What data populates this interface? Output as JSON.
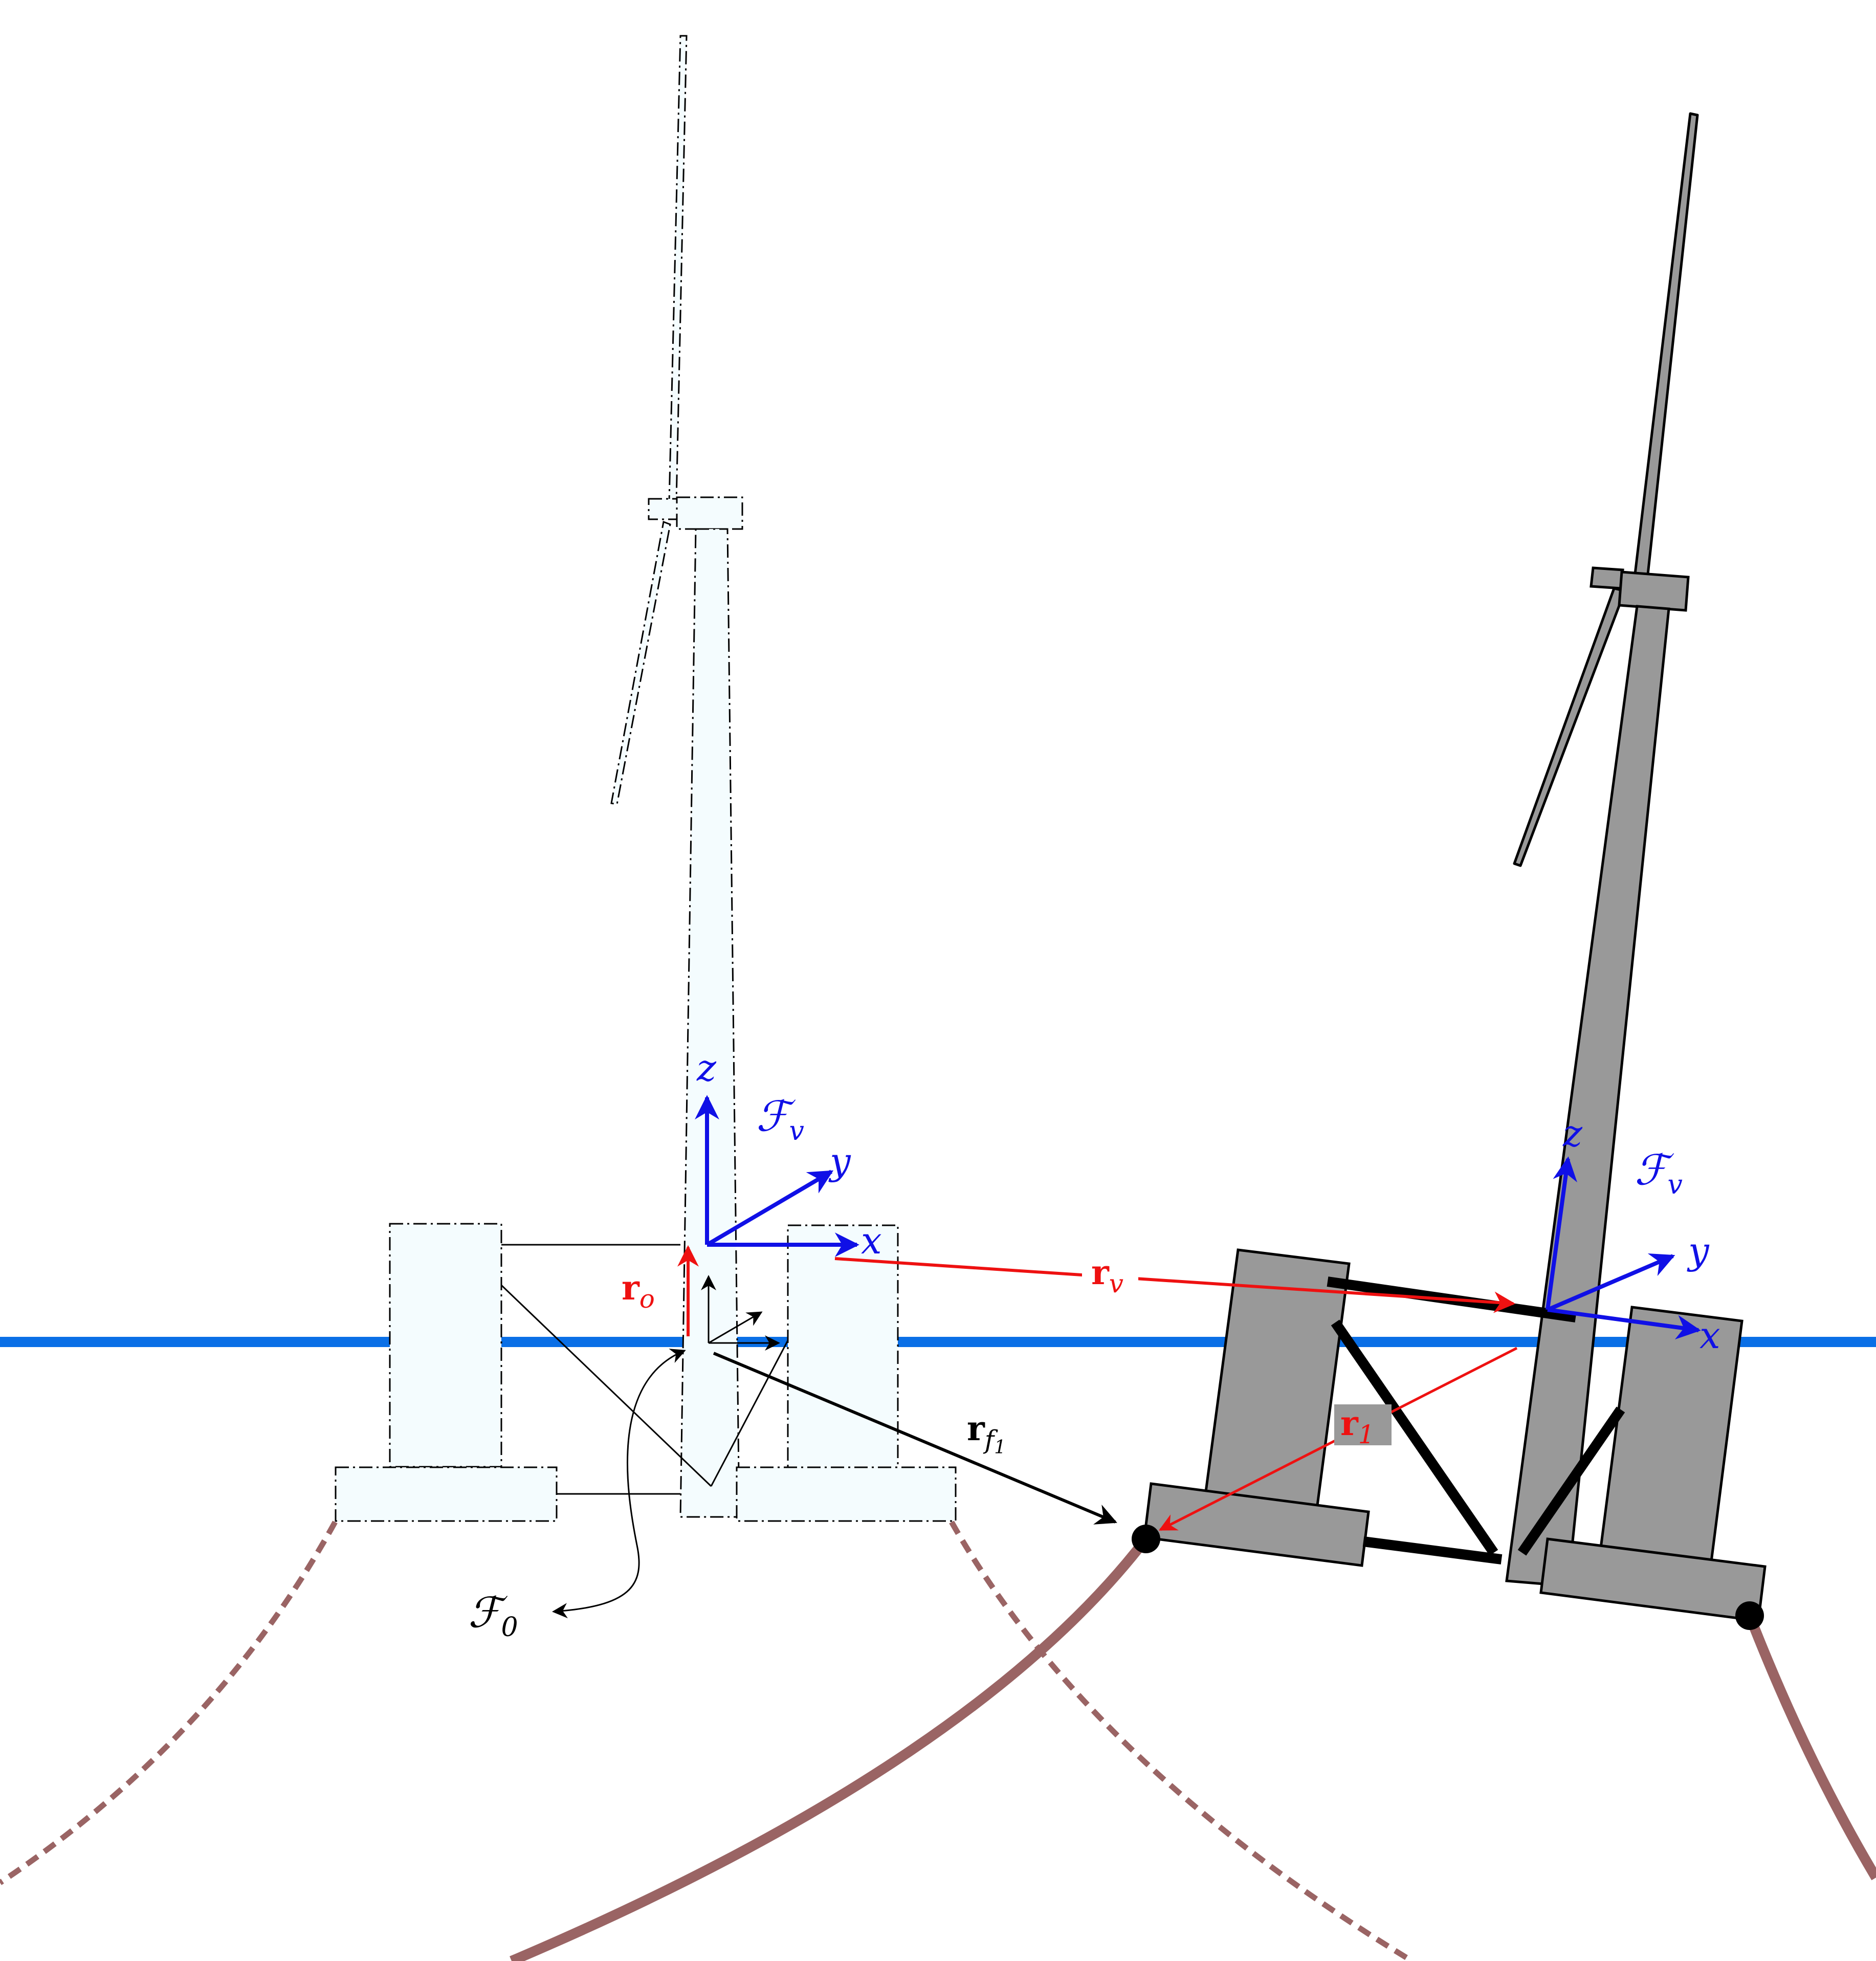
{
  "colors": {
    "water": "#0a6fe6",
    "mooring": "#9a6464",
    "frame_blue": "#1010e6",
    "vector_red": "#ee1111",
    "ghost_fill": "#f4fcfe",
    "body_fill": "#999999",
    "ink": "#000000"
  },
  "labels": {
    "ghost_frame": {
      "z": "z",
      "y": "y",
      "x": "x",
      "name": "ℱ",
      "sub": "v"
    },
    "displaced_frame": {
      "z": "z",
      "y": "y",
      "x": "x",
      "name": "ℱ",
      "sub": "v"
    },
    "inertial_frame": {
      "name": "ℱ",
      "sub": "0"
    },
    "r_o": {
      "main": "r",
      "sub": "o"
    },
    "r_v": {
      "main": "r",
      "sub": "v"
    },
    "r_f1": {
      "main": "r",
      "sub": "f",
      "subsub": "1"
    },
    "r_1": {
      "main": "r",
      "sub": "1"
    }
  }
}
